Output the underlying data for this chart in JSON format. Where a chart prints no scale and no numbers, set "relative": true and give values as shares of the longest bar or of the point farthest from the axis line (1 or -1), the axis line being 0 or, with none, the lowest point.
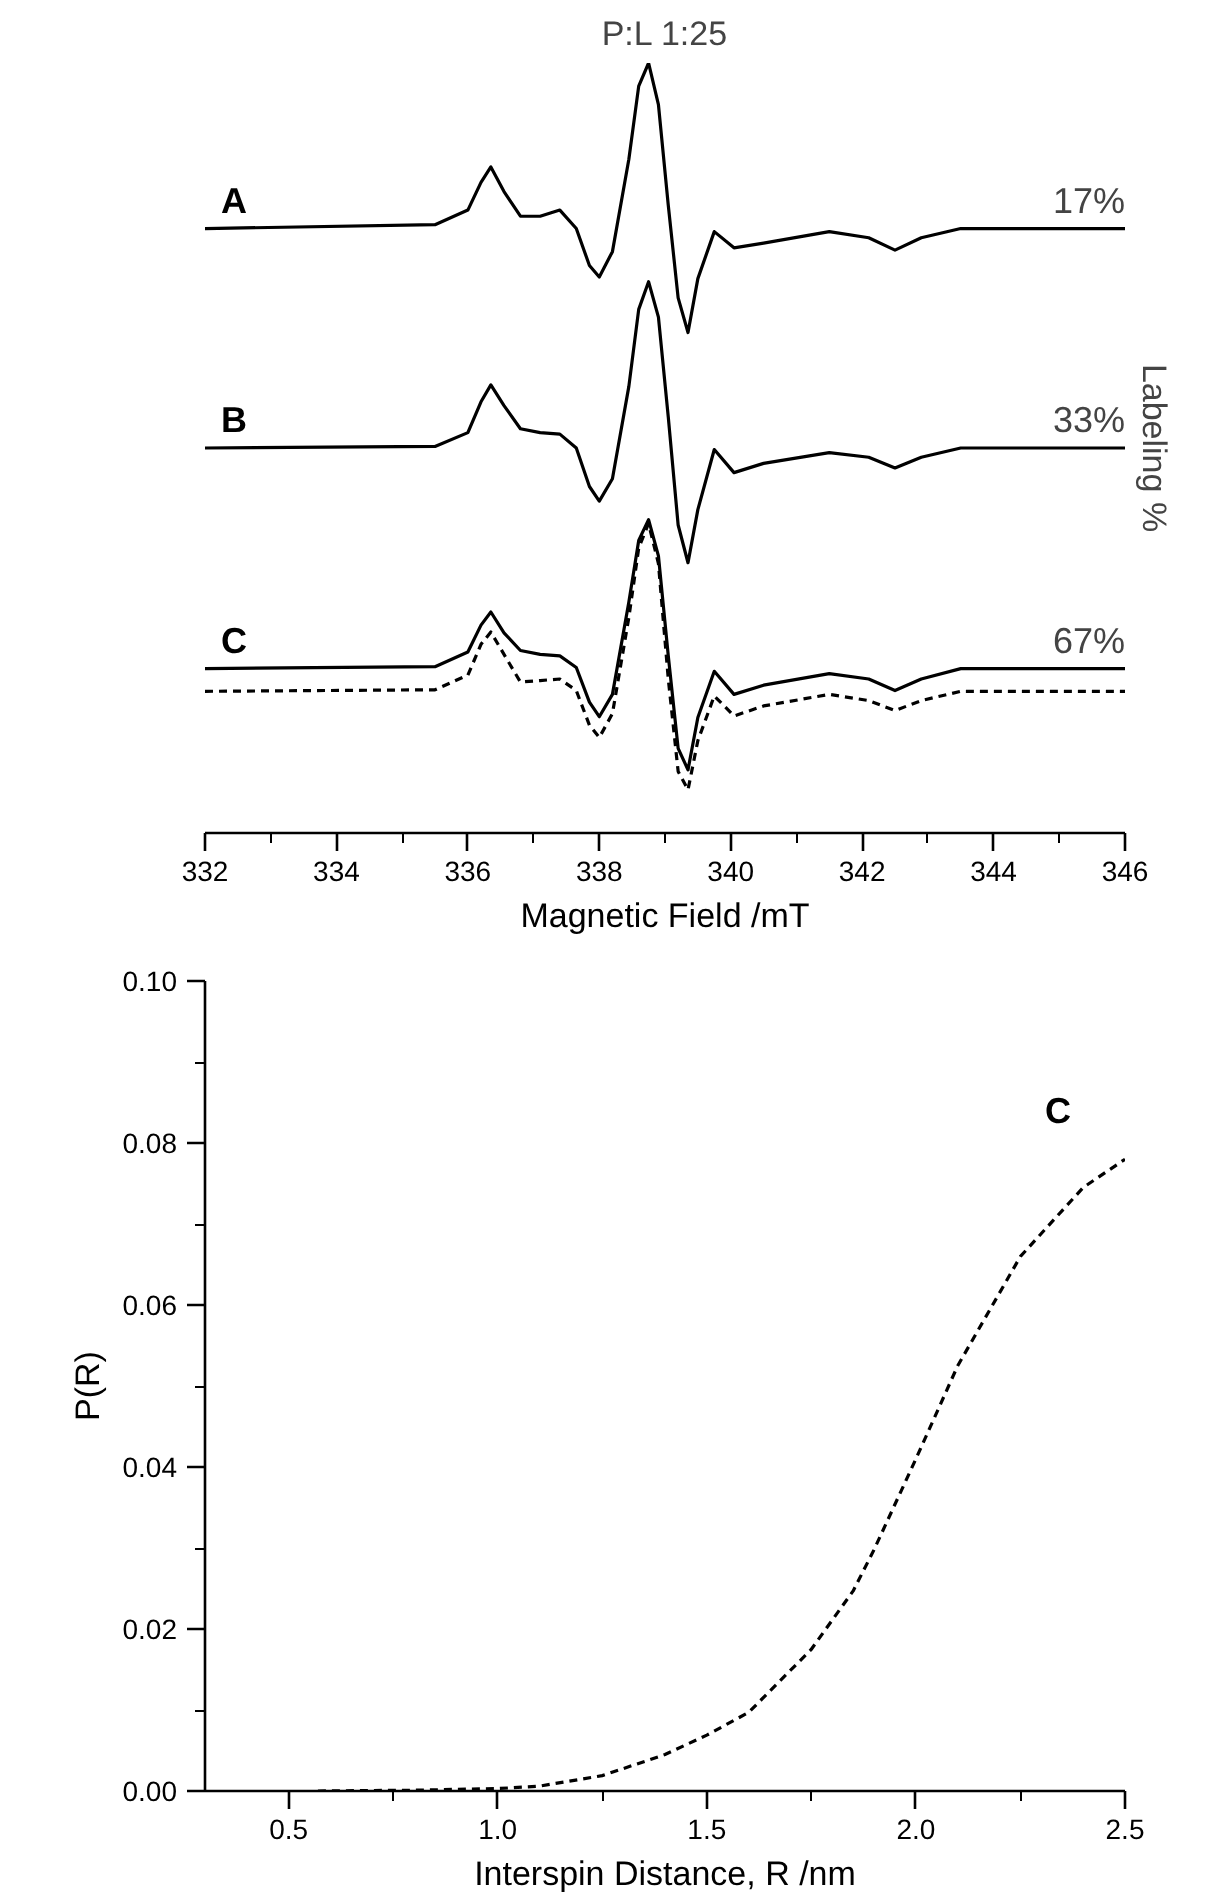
{
  "chart_data": [
    {
      "type": "line",
      "title": "P:L 1:25",
      "xlabel": "Magnetic Field /mT",
      "y2label": "Labeling %",
      "relative": true,
      "xlim": [
        332,
        346
      ],
      "xticks": [
        332,
        334,
        336,
        338,
        340,
        342,
        344,
        346
      ],
      "x": [
        332,
        335.5,
        336.0,
        336.2,
        336.35,
        336.55,
        336.8,
        337.1,
        337.4,
        337.65,
        337.85,
        338.0,
        338.2,
        338.45,
        338.6,
        338.75,
        338.9,
        339.05,
        339.2,
        339.35,
        339.5,
        339.75,
        340.05,
        340.5,
        341.5,
        342.1,
        342.5,
        342.9,
        343.5,
        346
      ],
      "annotations": [
        "17%",
        "33%",
        "67%"
      ],
      "series": [
        {
          "name": "A",
          "color": "#000000",
          "line_style": "solid",
          "values": [
            0.785,
            0.79,
            0.809,
            0.845,
            0.865,
            0.833,
            0.801,
            0.801,
            0.809,
            0.785,
            0.737,
            0.722,
            0.755,
            0.875,
            0.97,
            1.0,
            0.946,
            0.815,
            0.695,
            0.65,
            0.72,
            0.781,
            0.76,
            0.766,
            0.781,
            0.773,
            0.757,
            0.773,
            0.785,
            0.785
          ]
        },
        {
          "name": "B",
          "color": "#000000",
          "line_style": "solid",
          "values": [
            0.5,
            0.502,
            0.52,
            0.56,
            0.582,
            0.555,
            0.525,
            0.52,
            0.518,
            0.5,
            0.45,
            0.431,
            0.46,
            0.58,
            0.68,
            0.716,
            0.67,
            0.54,
            0.4,
            0.351,
            0.42,
            0.498,
            0.468,
            0.48,
            0.494,
            0.488,
            0.474,
            0.488,
            0.5,
            0.5
          ]
        },
        {
          "name": "C",
          "color": "#000000",
          "line_style": "solid",
          "values": [
            0.2135,
            0.216,
            0.235,
            0.27,
            0.287,
            0.26,
            0.237,
            0.232,
            0.23,
            0.215,
            0.17,
            0.151,
            0.18,
            0.3,
            0.38,
            0.407,
            0.36,
            0.23,
            0.11,
            0.082,
            0.15,
            0.21,
            0.18,
            0.192,
            0.207,
            0.2,
            0.185,
            0.2,
            0.2135,
            0.2135
          ]
        },
        {
          "color": "#000000",
          "line_style": "dashed",
          "values": [
            0.184,
            0.186,
            0.205,
            0.245,
            0.261,
            0.232,
            0.196,
            0.198,
            0.2,
            0.185,
            0.14,
            0.124,
            0.155,
            0.28,
            0.37,
            0.402,
            0.35,
            0.2,
            0.08,
            0.056,
            0.12,
            0.178,
            0.152,
            0.165,
            0.18,
            0.172,
            0.159,
            0.172,
            0.184,
            0.184
          ]
        }
      ]
    },
    {
      "type": "line",
      "xlabel": "Interspin Distance, R /nm",
      "ylabel": "P(R)",
      "xlim": [
        0.3,
        2.5
      ],
      "ylim": [
        0,
        0.1
      ],
      "xticks": [
        {
          "value": 0.5,
          "label": "0.5"
        },
        {
          "value": 1.0,
          "label": "1.0"
        },
        {
          "value": 1.5,
          "label": "1.5"
        },
        {
          "value": 2.0,
          "label": "2.0"
        },
        {
          "value": 2.5,
          "label": "2.5"
        }
      ],
      "yticks": [
        {
          "value": 0,
          "label": "0.00"
        },
        {
          "value": 0.02,
          "label": "0.02"
        },
        {
          "value": 0.04,
          "label": "0.04"
        },
        {
          "value": 0.06,
          "label": "0.06"
        },
        {
          "value": 0.08,
          "label": "0.08"
        },
        {
          "value": 0.1,
          "label": "0.10"
        }
      ],
      "line_style": "dashed",
      "series": [
        {
          "name": "C",
          "color": "#000000",
          "x": [
            0.57,
            0.8,
            1.0,
            1.1,
            1.25,
            1.4,
            1.5,
            1.6,
            1.75,
            1.85,
            1.9,
            2.0,
            2.1,
            2.25,
            2.4,
            2.5
          ],
          "values": [
            0,
            0.0001,
            0.0003,
            0.0006,
            0.0019,
            0.0045,
            0.0069,
            0.0097,
            0.0175,
            0.0247,
            0.0298,
            0.041,
            0.0525,
            0.066,
            0.0745,
            0.078
          ]
        }
      ]
    }
  ]
}
